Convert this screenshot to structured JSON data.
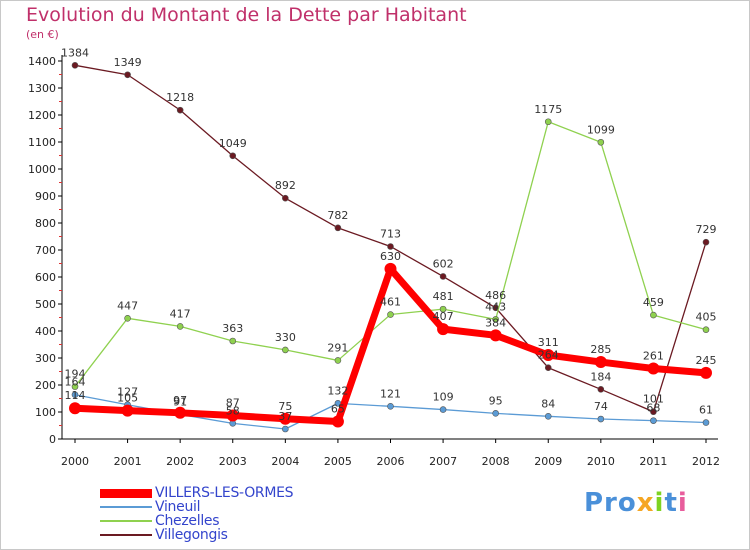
{
  "chart_data": {
    "type": "line",
    "title": "Evolution du Montant de la Dette par Habitant",
    "unit_label": "(en €)",
    "x": [
      "2000",
      "2001",
      "2002",
      "2003",
      "2004",
      "2005",
      "2006",
      "2007",
      "2008",
      "2009",
      "2010",
      "2011",
      "2012"
    ],
    "ylim": [
      0,
      1400
    ],
    "yticks": [
      0,
      100,
      200,
      300,
      400,
      500,
      600,
      700,
      800,
      900,
      1000,
      1100,
      1200,
      1300,
      1400
    ],
    "grid": false,
    "legend_position": "bottom-left",
    "series": [
      {
        "name": "VILLERS-LES-ORMES",
        "color": "#ff0000",
        "values": [
          114,
          105,
          97,
          87,
          75,
          65,
          630,
          407,
          384,
          311,
          285,
          261,
          245
        ]
      },
      {
        "name": "Vineuil",
        "color": "#5b9bd5",
        "values": [
          164,
          127,
          91,
          58,
          37,
          132,
          121,
          109,
          95,
          84,
          74,
          68,
          61
        ]
      },
      {
        "name": "Chezelles",
        "color": "#8fd14f",
        "values": [
          194,
          447,
          417,
          363,
          330,
          291,
          461,
          481,
          443,
          1175,
          1099,
          459,
          405
        ]
      },
      {
        "name": "Villegongis",
        "color": "#6b1a22",
        "values": [
          1384,
          1349,
          1218,
          1049,
          892,
          782,
          713,
          602,
          486,
          264,
          184,
          101,
          729
        ]
      }
    ]
  },
  "logo": {
    "text_parts": [
      "Pro",
      "x",
      "iti"
    ],
    "colors": [
      "#4a90d9",
      "#f5a623",
      "#7ed321",
      "#e85d9c"
    ]
  }
}
